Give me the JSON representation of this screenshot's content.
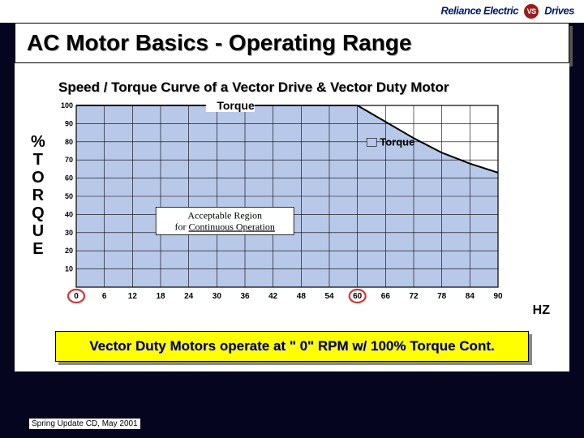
{
  "logo": {
    "left": "Reliance Electric",
    "right": "Drives"
  },
  "title": "AC Motor Basics - Operating Range",
  "subtitle": "Speed / Torque Curve of a Vector Drive & Vector Duty Motor",
  "chart": {
    "type": "area",
    "background_color": "#ffffff",
    "grid_color": "#000000",
    "area_color": "#b8c8e8",
    "line_color": "#000000",
    "yaxis": {
      "label": "%TORQUE",
      "ticks": [
        100,
        90,
        80,
        70,
        60,
        50,
        40,
        30,
        20,
        10
      ],
      "min": 0,
      "max": 100,
      "fontsize": 9
    },
    "xaxis": {
      "label": "HZ",
      "ticks": [
        0,
        6,
        12,
        18,
        24,
        30,
        36,
        42,
        48,
        54,
        60,
        66,
        72,
        78,
        84,
        90
      ],
      "min": 0,
      "max": 90,
      "fontsize": 10
    },
    "curve": {
      "x": [
        0,
        60,
        66,
        72,
        78,
        84,
        90
      ],
      "y": [
        100,
        100,
        91,
        82,
        74,
        68,
        63
      ]
    },
    "annotations": {
      "torque_top": "Torque",
      "torque_legend": "Torque",
      "legend_swatch_color": "#b8c8e8",
      "region_line1": "Acceptable Region",
      "region_line2": "for Continuous Operation",
      "region_underline": "Continuous Operation"
    },
    "markers": {
      "circle_color": "#d03838",
      "circle_radius": 10,
      "circles_at_x": [
        0,
        60
      ]
    }
  },
  "bottom_text": "Vector Duty Motors operate at \" 0\" RPM w/ 100% Torque Cont.",
  "footer": "Spring Update CD, May 2001"
}
